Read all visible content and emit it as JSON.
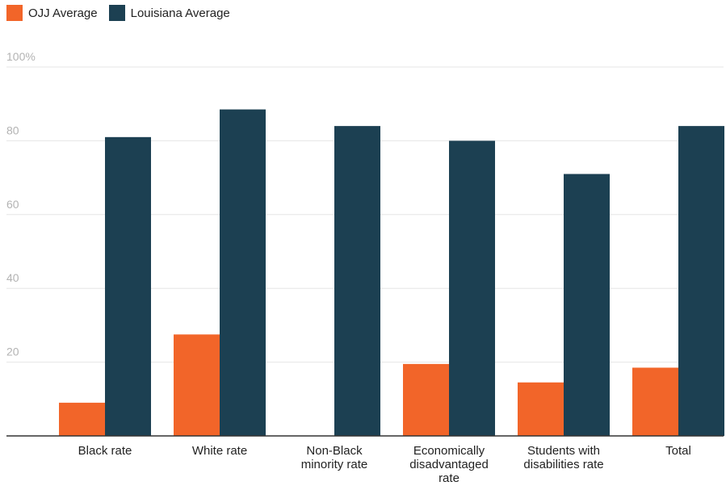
{
  "chart_data": {
    "type": "bar",
    "categories": [
      [
        "Black rate"
      ],
      [
        "White rate"
      ],
      [
        "Non-Black",
        "minority rate"
      ],
      [
        "Economically",
        "disadvantaged",
        "rate"
      ],
      [
        "Students with",
        "disabilities rate"
      ],
      [
        "Total"
      ]
    ],
    "series": [
      {
        "name": "OJJ Average",
        "color": "#f26529",
        "values": [
          9,
          27.5,
          0,
          19.5,
          14.5,
          18.5
        ]
      },
      {
        "name": "Louisiana Average",
        "color": "#1c4052",
        "values": [
          81,
          88.5,
          84,
          80,
          71,
          84
        ]
      }
    ],
    "ylim": [
      0,
      100
    ],
    "yticks": [
      {
        "value": 20,
        "label": "20"
      },
      {
        "value": 40,
        "label": "40"
      },
      {
        "value": 60,
        "label": "60"
      },
      {
        "value": 80,
        "label": "80"
      },
      {
        "value": 100,
        "label": "100%"
      }
    ],
    "grid": true,
    "legend": "top-left"
  }
}
